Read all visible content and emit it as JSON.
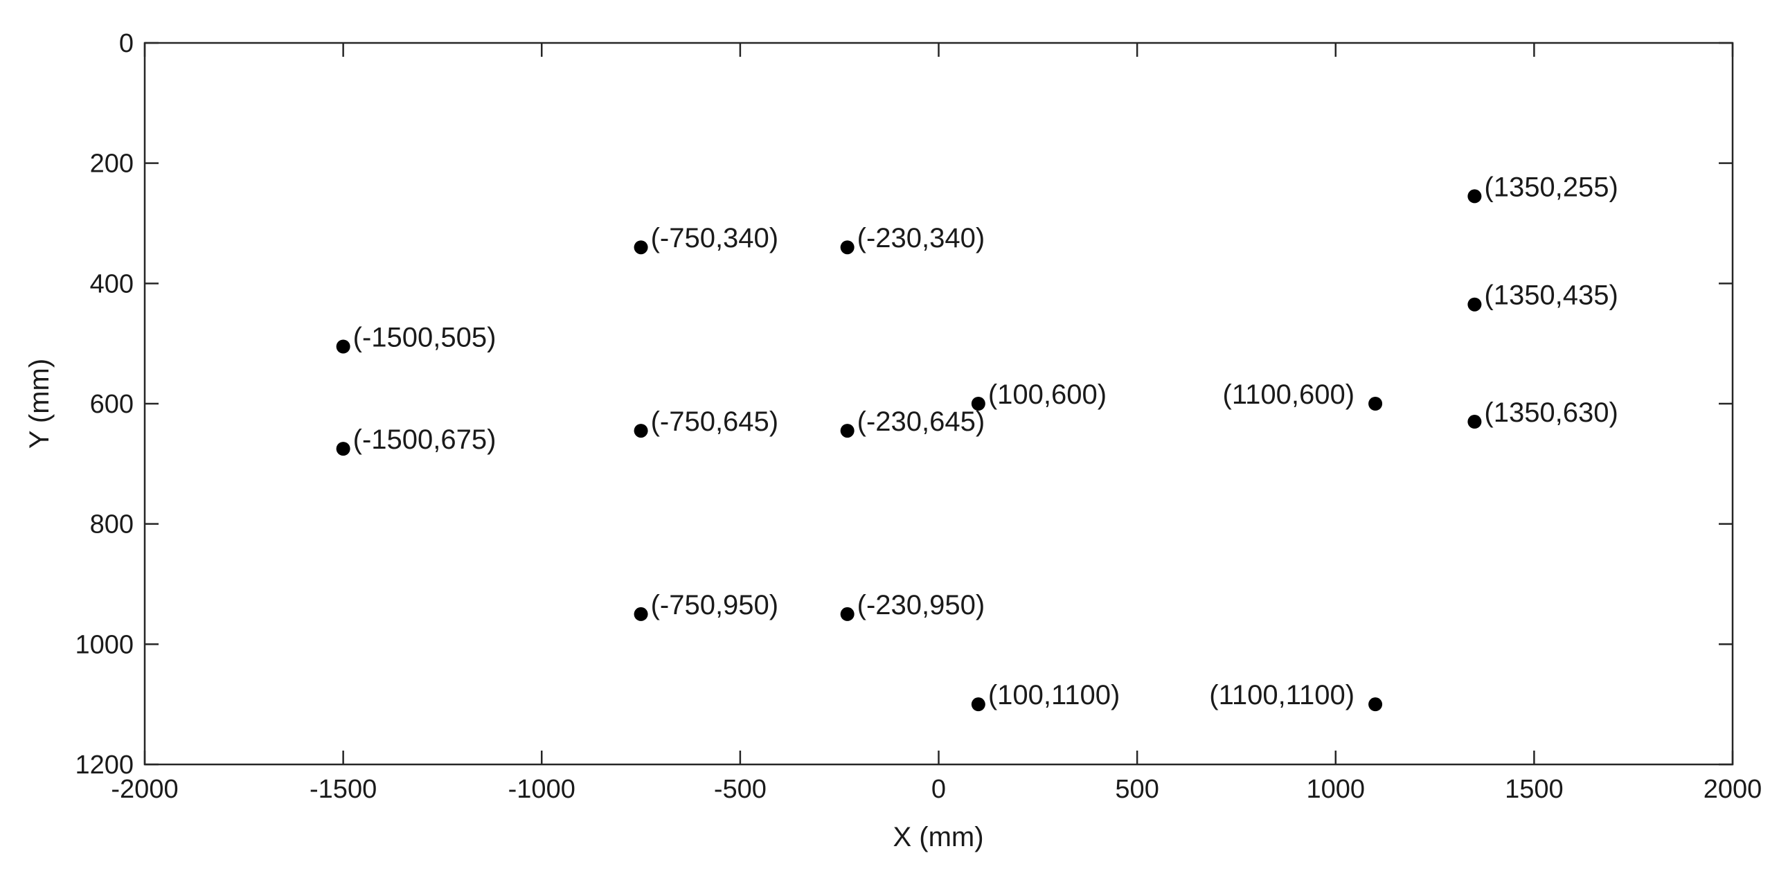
{
  "chart_data": {
    "type": "scatter",
    "title": "",
    "xlabel": "X (mm)",
    "ylabel": "Y (mm)",
    "xlim": [
      -2000,
      2000
    ],
    "ylim": [
      0,
      1200
    ],
    "y_reversed": true,
    "grid": false,
    "x_ticks": [
      -2000,
      -1500,
      -1000,
      -500,
      0,
      500,
      1000,
      1500,
      2000
    ],
    "y_ticks": [
      0,
      200,
      400,
      600,
      800,
      1000,
      1200
    ],
    "marker_color": "#000000",
    "points": [
      {
        "x": -1500,
        "y": 505,
        "label": "(-1500,505)",
        "label_side": "right"
      },
      {
        "x": -1500,
        "y": 675,
        "label": "(-1500,675)",
        "label_side": "right"
      },
      {
        "x": -750,
        "y": 340,
        "label": "(-750,340)",
        "label_side": "right"
      },
      {
        "x": -750,
        "y": 645,
        "label": "(-750,645)",
        "label_side": "right"
      },
      {
        "x": -750,
        "y": 950,
        "label": "(-750,950)",
        "label_side": "right"
      },
      {
        "x": -230,
        "y": 340,
        "label": "(-230,340)",
        "label_side": "right"
      },
      {
        "x": -230,
        "y": 645,
        "label": "(-230,645)",
        "label_side": "right"
      },
      {
        "x": -230,
        "y": 950,
        "label": "(-230,950)",
        "label_side": "right"
      },
      {
        "x": 100,
        "y": 600,
        "label": "(100,600)",
        "label_side": "right"
      },
      {
        "x": 100,
        "y": 1100,
        "label": "(100,1100)",
        "label_side": "right"
      },
      {
        "x": 1100,
        "y": 600,
        "label": "(1100,600)",
        "label_side": "left"
      },
      {
        "x": 1100,
        "y": 1100,
        "label": "(1100,1100)",
        "label_side": "left"
      },
      {
        "x": 1350,
        "y": 255,
        "label": "(1350,255)",
        "label_side": "right"
      },
      {
        "x": 1350,
        "y": 435,
        "label": "(1350,435)",
        "label_side": "right"
      },
      {
        "x": 1350,
        "y": 630,
        "label": "(1350,630)",
        "label_side": "right"
      }
    ]
  }
}
